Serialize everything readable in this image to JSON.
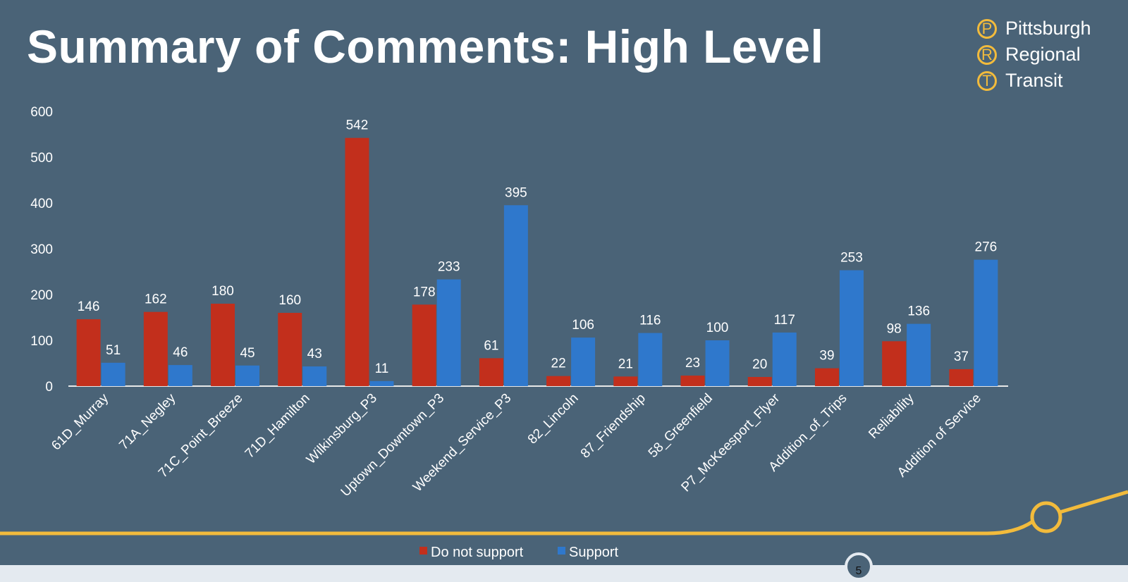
{
  "title": "Summary of Comments: High Level",
  "logo": {
    "letters": [
      "P",
      "R",
      "T"
    ],
    "words": [
      "Pittsburgh",
      "Regional",
      "Transit"
    ]
  },
  "page_number": "5",
  "colors": {
    "background": "#4a6377",
    "do_not_support": "#c22f1c",
    "support": "#2f78cc",
    "accent": "#f2bb3c"
  },
  "chart_data": {
    "type": "bar",
    "categories": [
      "61D_Murray",
      "71A_Negley",
      "71C_Point_Breeze",
      "71D_Hamilton",
      "Wilkinsburg_P3",
      "Uptown_Downtown_P3",
      "Weekend_Service_P3",
      "82_Lincoln",
      "87_Friendship",
      "58_Greenfield",
      "P7_McKeesport_Flyer",
      "Addition_of_Trips",
      "Reliability",
      "Addition of Service"
    ],
    "series": [
      {
        "name": "Do not support",
        "values": [
          146,
          162,
          180,
          160,
          542,
          178,
          61,
          22,
          21,
          23,
          20,
          39,
          98,
          37
        ]
      },
      {
        "name": "Support",
        "values": [
          51,
          46,
          45,
          43,
          11,
          233,
          395,
          106,
          116,
          100,
          117,
          253,
          136,
          276
        ]
      }
    ],
    "yticks": [
      "0",
      "100",
      "200",
      "300",
      "400",
      "500",
      "600"
    ],
    "ylim": [
      0,
      600
    ],
    "grid": false,
    "legend": "bottom"
  }
}
